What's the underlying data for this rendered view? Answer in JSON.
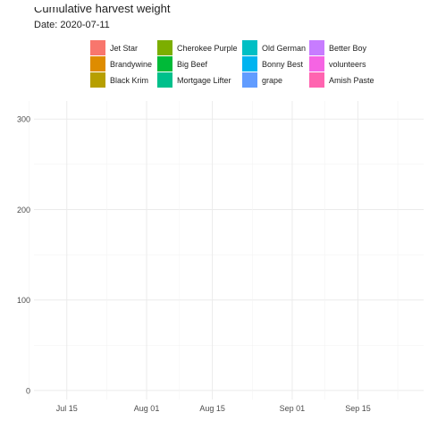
{
  "chart_data": {
    "type": "line",
    "title": "Cumulative harvest weight",
    "subtitle": "Date: 2020-07-11",
    "xlabel": "",
    "ylabel": "",
    "x_ticks": [
      "Jul 15",
      "Aug 01",
      "Aug 15",
      "Sep 01",
      "Sep 15"
    ],
    "x_range": [
      "2020-07-08",
      "2020-09-29"
    ],
    "y_ticks": [
      0,
      100,
      200,
      300
    ],
    "ylim": [
      -10,
      320
    ],
    "grid": true,
    "legend_position": "top",
    "series": [
      {
        "name": "Jet Star",
        "color": "#F8766D",
        "values": []
      },
      {
        "name": "Brandywine",
        "color": "#DE8C00",
        "values": []
      },
      {
        "name": "Black Krim",
        "color": "#B79F00",
        "values": []
      },
      {
        "name": "Cherokee Purple",
        "color": "#7CAE00",
        "values": []
      },
      {
        "name": "Big Beef",
        "color": "#00BA38",
        "values": []
      },
      {
        "name": "Mortgage Lifter",
        "color": "#00C08B",
        "values": []
      },
      {
        "name": "Old German",
        "color": "#00BFC4",
        "values": []
      },
      {
        "name": "Bonny Best",
        "color": "#00B4F0",
        "values": []
      },
      {
        "name": "grape",
        "color": "#619CFF",
        "values": []
      },
      {
        "name": "Better Boy",
        "color": "#C77CFF",
        "values": []
      },
      {
        "name": "volunteers",
        "color": "#F564E3",
        "values": []
      },
      {
        "name": "Amish Paste",
        "color": "#FF64B0",
        "values": []
      }
    ]
  }
}
